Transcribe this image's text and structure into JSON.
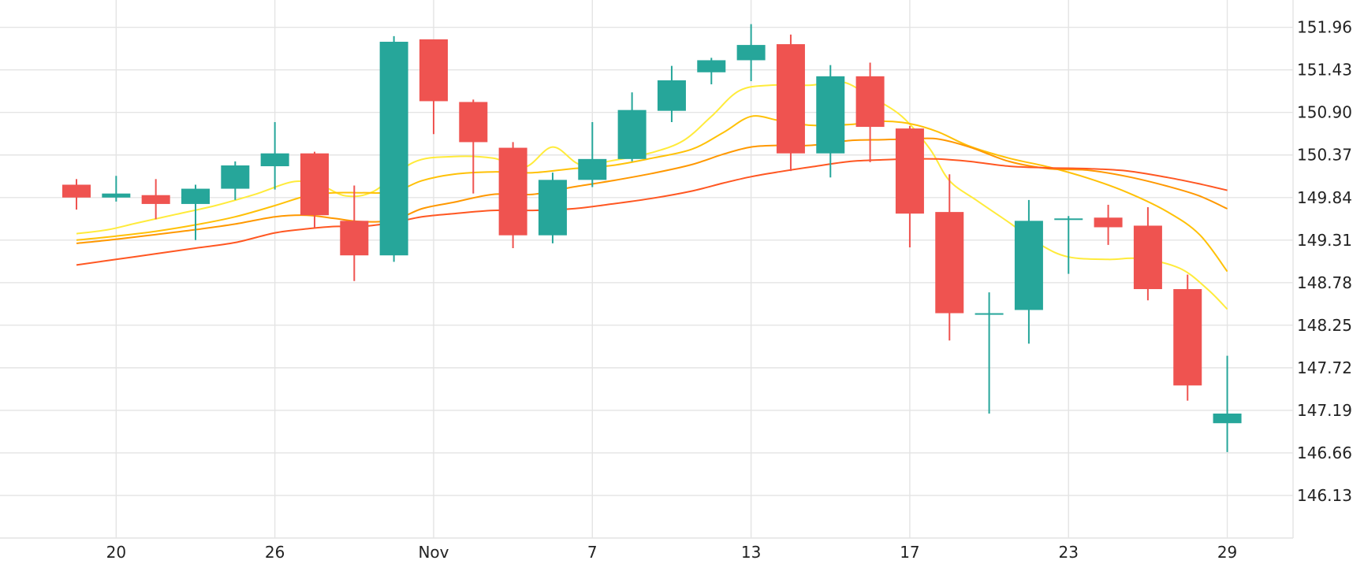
{
  "chart_data": {
    "type": "candlestick",
    "title": "",
    "xlabel": "",
    "ylabel": "",
    "ylim": [
      145.6,
      152.3
    ],
    "grid": true,
    "y_ticks": [
      "151.96",
      "151.43",
      "150.90",
      "150.37",
      "149.84",
      "149.31",
      "148.78",
      "148.25",
      "147.72",
      "147.19",
      "146.66",
      "146.13"
    ],
    "x_ticks": [
      {
        "label": "20",
        "index": 1
      },
      {
        "label": "26",
        "index": 5
      },
      {
        "label": "Nov",
        "index": 9
      },
      {
        "label": "7",
        "index": 13
      },
      {
        "label": "13",
        "index": 17
      },
      {
        "label": "17",
        "index": 21
      },
      {
        "label": "23",
        "index": 25
      },
      {
        "label": "29",
        "index": 29
      }
    ],
    "colors": {
      "up": "#26a69a",
      "down": "#ef5350"
    },
    "candles": [
      {
        "o": 150.0,
        "h": 150.07,
        "l": 149.69,
        "c": 149.84
      },
      {
        "o": 149.84,
        "h": 150.11,
        "l": 149.79,
        "c": 149.89
      },
      {
        "o": 149.87,
        "h": 150.07,
        "l": 149.57,
        "c": 149.76
      },
      {
        "o": 149.76,
        "h": 150.0,
        "l": 149.31,
        "c": 149.95
      },
      {
        "o": 149.95,
        "h": 150.29,
        "l": 149.81,
        "c": 150.24
      },
      {
        "o": 150.23,
        "h": 150.78,
        "l": 149.94,
        "c": 150.39
      },
      {
        "o": 150.39,
        "h": 150.41,
        "l": 149.46,
        "c": 149.62
      },
      {
        "o": 149.55,
        "h": 149.99,
        "l": 148.8,
        "c": 149.12
      },
      {
        "o": 149.12,
        "h": 151.85,
        "l": 149.04,
        "c": 151.78
      },
      {
        "o": 151.81,
        "h": 151.81,
        "l": 150.63,
        "c": 151.04
      },
      {
        "o": 151.03,
        "h": 151.06,
        "l": 149.89,
        "c": 150.53
      },
      {
        "o": 150.46,
        "h": 150.53,
        "l": 149.21,
        "c": 149.37
      },
      {
        "o": 149.37,
        "h": 150.15,
        "l": 149.27,
        "c": 150.06
      },
      {
        "o": 150.06,
        "h": 150.78,
        "l": 149.97,
        "c": 150.32
      },
      {
        "o": 150.32,
        "h": 151.15,
        "l": 150.29,
        "c": 150.93
      },
      {
        "o": 150.92,
        "h": 151.48,
        "l": 150.78,
        "c": 151.3
      },
      {
        "o": 151.4,
        "h": 151.58,
        "l": 151.25,
        "c": 151.55
      },
      {
        "o": 151.55,
        "h": 152.0,
        "l": 151.29,
        "c": 151.74
      },
      {
        "o": 151.75,
        "h": 151.87,
        "l": 150.17,
        "c": 150.39
      },
      {
        "o": 150.39,
        "h": 151.49,
        "l": 150.09,
        "c": 151.35
      },
      {
        "o": 151.35,
        "h": 151.52,
        "l": 150.28,
        "c": 150.72
      },
      {
        "o": 150.7,
        "h": 150.73,
        "l": 149.22,
        "c": 149.64
      },
      {
        "o": 149.66,
        "h": 150.13,
        "l": 148.06,
        "c": 148.4
      },
      {
        "o": 148.4,
        "h": 148.66,
        "l": 147.15,
        "c": 148.4
      },
      {
        "o": 148.44,
        "h": 149.81,
        "l": 148.02,
        "c": 149.55
      },
      {
        "o": 149.58,
        "h": 149.61,
        "l": 148.89,
        "c": 149.58
      },
      {
        "o": 149.59,
        "h": 149.75,
        "l": 149.25,
        "c": 149.47
      },
      {
        "o": 149.49,
        "h": 149.72,
        "l": 148.56,
        "c": 148.7
      },
      {
        "o": 148.7,
        "h": 148.88,
        "l": 147.31,
        "c": 147.5
      },
      {
        "o": 147.03,
        "h": 147.87,
        "l": 146.67,
        "c": 147.15
      }
    ],
    "series": [
      {
        "color": "#ffeb3b",
        "points": [
          [
            0,
            149.39
          ],
          [
            0.8,
            149.44
          ],
          [
            1.5,
            149.52
          ],
          [
            2.5,
            149.63
          ],
          [
            3.5,
            149.74
          ],
          [
            4.5,
            149.88
          ],
          [
            5.5,
            150.04
          ],
          [
            6.2,
            149.98
          ],
          [
            6.8,
            149.86
          ],
          [
            7.5,
            149.92
          ],
          [
            8.5,
            150.28
          ],
          [
            9.5,
            150.35
          ],
          [
            10.5,
            150.33
          ],
          [
            11.3,
            150.22
          ],
          [
            12.0,
            150.47
          ],
          [
            12.7,
            150.25
          ],
          [
            13.5,
            150.3
          ],
          [
            14.5,
            150.4
          ],
          [
            15.3,
            150.55
          ],
          [
            16.0,
            150.85
          ],
          [
            16.7,
            151.17
          ],
          [
            17.5,
            151.24
          ],
          [
            18.5,
            151.24
          ],
          [
            19.3,
            151.28
          ],
          [
            20.0,
            151.1
          ],
          [
            20.8,
            150.85
          ],
          [
            21.5,
            150.45
          ],
          [
            22.0,
            150.05
          ],
          [
            22.7,
            149.8
          ],
          [
            23.5,
            149.53
          ],
          [
            24.3,
            149.25
          ],
          [
            25.0,
            149.1
          ],
          [
            26.0,
            149.07
          ],
          [
            26.8,
            149.08
          ],
          [
            27.8,
            148.96
          ],
          [
            28.5,
            148.7
          ],
          [
            29.0,
            148.45
          ]
        ]
      },
      {
        "color": "#ffc107",
        "points": [
          [
            0,
            149.31
          ],
          [
            1,
            149.36
          ],
          [
            2,
            149.42
          ],
          [
            3,
            149.5
          ],
          [
            4,
            149.6
          ],
          [
            5,
            149.74
          ],
          [
            5.8,
            149.86
          ],
          [
            6.5,
            149.9
          ],
          [
            7.2,
            149.9
          ],
          [
            8,
            149.91
          ],
          [
            8.7,
            150.05
          ],
          [
            9.5,
            150.13
          ],
          [
            10.5,
            150.16
          ],
          [
            11.5,
            150.15
          ],
          [
            12.5,
            150.2
          ],
          [
            13.5,
            150.24
          ],
          [
            14.5,
            150.33
          ],
          [
            15.5,
            150.44
          ],
          [
            16.3,
            150.65
          ],
          [
            17,
            150.85
          ],
          [
            17.7,
            150.8
          ],
          [
            18.5,
            150.74
          ],
          [
            19.5,
            150.75
          ],
          [
            20.3,
            150.79
          ],
          [
            21,
            150.76
          ],
          [
            21.7,
            150.66
          ],
          [
            22.5,
            150.48
          ],
          [
            23.5,
            150.33
          ],
          [
            24.5,
            150.22
          ],
          [
            25.5,
            150.08
          ],
          [
            26.5,
            149.9
          ],
          [
            27.5,
            149.66
          ],
          [
            28.3,
            149.38
          ],
          [
            29.0,
            148.92
          ]
        ]
      },
      {
        "color": "#ff9800",
        "points": [
          [
            0,
            149.27
          ],
          [
            1,
            149.32
          ],
          [
            2,
            149.38
          ],
          [
            3,
            149.44
          ],
          [
            4,
            149.51
          ],
          [
            5,
            149.6
          ],
          [
            5.8,
            149.62
          ],
          [
            6.5,
            149.58
          ],
          [
            7.2,
            149.54
          ],
          [
            8,
            149.56
          ],
          [
            8.7,
            149.7
          ],
          [
            9.5,
            149.78
          ],
          [
            10.5,
            149.88
          ],
          [
            11.5,
            149.88
          ],
          [
            12.5,
            149.97
          ],
          [
            13.5,
            150.05
          ],
          [
            14.5,
            150.14
          ],
          [
            15.5,
            150.25
          ],
          [
            16.3,
            150.38
          ],
          [
            17,
            150.47
          ],
          [
            17.7,
            150.49
          ],
          [
            18.5,
            150.49
          ],
          [
            19.5,
            150.55
          ],
          [
            20.3,
            150.56
          ],
          [
            21,
            150.57
          ],
          [
            21.7,
            150.57
          ],
          [
            22.5,
            150.47
          ],
          [
            23.5,
            150.29
          ],
          [
            24.5,
            150.2
          ],
          [
            25.5,
            150.18
          ],
          [
            26.5,
            150.1
          ],
          [
            27.5,
            149.98
          ],
          [
            28.3,
            149.86
          ],
          [
            29.0,
            149.7
          ]
        ]
      },
      {
        "color": "#ff5722",
        "points": [
          [
            0,
            149.0
          ],
          [
            1,
            149.07
          ],
          [
            2,
            149.14
          ],
          [
            3,
            149.21
          ],
          [
            4,
            149.28
          ],
          [
            5,
            149.4
          ],
          [
            5.8,
            149.45
          ],
          [
            6.5,
            149.48
          ],
          [
            7.2,
            149.48
          ],
          [
            8,
            149.53
          ],
          [
            8.7,
            149.6
          ],
          [
            9.5,
            149.64
          ],
          [
            10.5,
            149.68
          ],
          [
            11.5,
            149.68
          ],
          [
            12.5,
            149.7
          ],
          [
            13.5,
            149.76
          ],
          [
            14.5,
            149.83
          ],
          [
            15.5,
            149.92
          ],
          [
            16.3,
            150.02
          ],
          [
            17,
            150.1
          ],
          [
            17.7,
            150.16
          ],
          [
            18.5,
            150.22
          ],
          [
            19.5,
            150.29
          ],
          [
            20.3,
            150.31
          ],
          [
            21,
            150.32
          ],
          [
            21.7,
            150.32
          ],
          [
            22.5,
            150.29
          ],
          [
            23.5,
            150.23
          ],
          [
            24.5,
            150.21
          ],
          [
            25.5,
            150.2
          ],
          [
            26.5,
            150.17
          ],
          [
            27.5,
            150.09
          ],
          [
            28.3,
            150.01
          ],
          [
            29.0,
            149.93
          ]
        ]
      }
    ]
  }
}
